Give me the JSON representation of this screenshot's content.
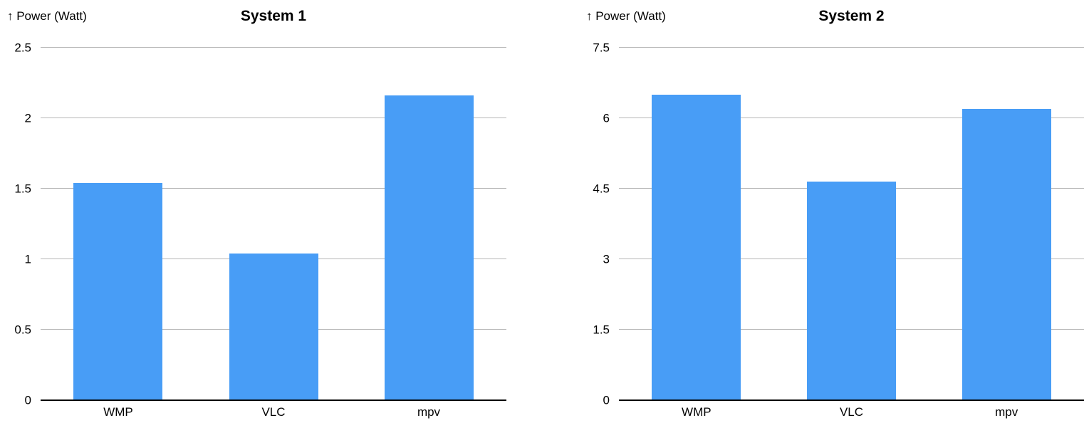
{
  "colors": {
    "bar": "#489df6",
    "gridline": "#b7b7b7",
    "axis_line": "#000000",
    "text": "#000000",
    "background": "#ffffff"
  },
  "chart_data": [
    {
      "type": "bar",
      "title": "System 1",
      "ylabel": "↑ Power (Watt)",
      "xlabel": "",
      "categories": [
        "WMP",
        "VLC",
        "mpv"
      ],
      "values": [
        1.54,
        1.04,
        2.16
      ],
      "yticks": [
        0,
        0.5,
        1,
        1.5,
        2,
        2.5
      ],
      "ytick_labels": [
        "0",
        "0.5",
        "1",
        "1.5",
        "2",
        "2.5"
      ],
      "ylim": [
        0,
        2.5
      ],
      "grid": true,
      "legend": "none",
      "bar_color": "#489df6"
    },
    {
      "type": "bar",
      "title": "System 2",
      "ylabel": "↑ Power (Watt)",
      "xlabel": "",
      "categories": [
        "WMP",
        "VLC",
        "mpv"
      ],
      "values": [
        6.5,
        4.65,
        6.2
      ],
      "yticks": [
        0,
        1.5,
        3,
        4.5,
        6,
        7.5
      ],
      "ytick_labels": [
        "0",
        "1.5",
        "3",
        "4.5",
        "6",
        "7.5"
      ],
      "ylim": [
        0,
        7.5
      ],
      "grid": true,
      "legend": "none",
      "bar_color": "#489df6"
    }
  ]
}
